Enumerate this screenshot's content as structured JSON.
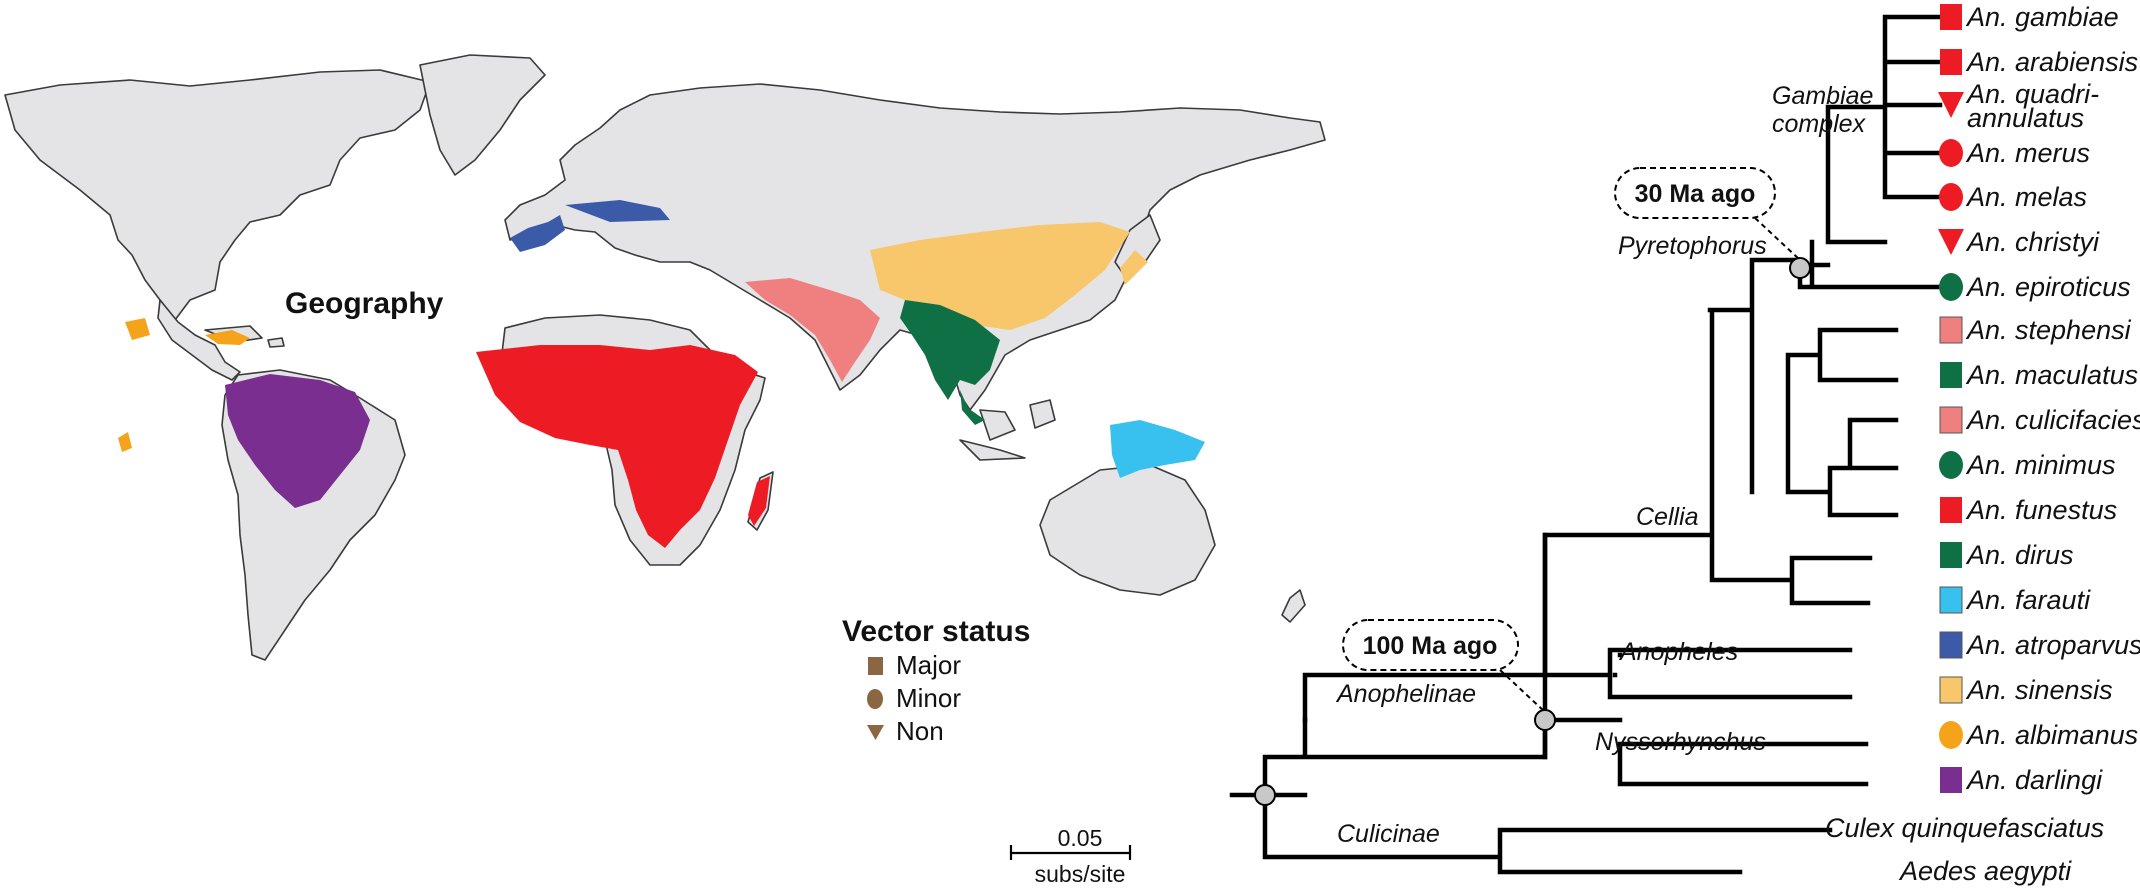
{
  "map": {
    "title": "Geography",
    "colors": {
      "red": "#ed1c24",
      "blue": "#3b5ba9",
      "pink": "#f08080",
      "yellow": "#f8c66b",
      "green": "#0f7045",
      "cyan": "#38c0ee",
      "orange": "#f5a31a",
      "purple": "#7a2e8f",
      "land": "#e4e4e6"
    }
  },
  "legend": {
    "title": "Vector status",
    "items": [
      {
        "label": "Major",
        "shape": "square"
      },
      {
        "label": "Minor",
        "shape": "circle"
      },
      {
        "label": "Non",
        "shape": "triangle"
      }
    ],
    "color": "#8a6642"
  },
  "scale_bar": {
    "value": "0.05",
    "unit": "subs/site"
  },
  "tree": {
    "ages": [
      "30 Ma ago",
      "100 Ma ago"
    ],
    "clades": {
      "gambiae_line1": "Gambiae",
      "gambiae_line2": "complex",
      "pyretophorus": "Pyretophorus",
      "cellia": "Cellia",
      "anopheles": "Anopheles",
      "anophelinae": "Anophelinae",
      "nyssorhynchus": "Nyssorhynchus",
      "culicinae": "Culicinae"
    },
    "species": [
      {
        "name": "An. gambiae",
        "shape": "square",
        "color": "#ed1c24"
      },
      {
        "name": "An. arabiensis",
        "shape": "square",
        "color": "#ed1c24"
      },
      {
        "name": "An. quadri-",
        "name2": "annulatus",
        "shape": "triangle",
        "color": "#ed1c24"
      },
      {
        "name": "An. merus",
        "shape": "circle",
        "color": "#ed1c24"
      },
      {
        "name": "An. melas",
        "shape": "circle",
        "color": "#ed1c24"
      },
      {
        "name": "An. christyi",
        "shape": "triangle",
        "color": "#ed1c24"
      },
      {
        "name": "An. epiroticus",
        "shape": "circle",
        "color": "#0f7045"
      },
      {
        "name": "An. stephensi",
        "shape": "square",
        "color": "#f08080"
      },
      {
        "name": "An. maculatus",
        "shape": "square",
        "color": "#0f7045"
      },
      {
        "name": "An. culicifacies",
        "shape": "square",
        "color": "#f08080"
      },
      {
        "name": "An. minimus",
        "shape": "circle",
        "color": "#0f7045"
      },
      {
        "name": "An. funestus",
        "shape": "square",
        "color": "#ed1c24"
      },
      {
        "name": "An. dirus",
        "shape": "square",
        "color": "#0f7045"
      },
      {
        "name": "An. farauti",
        "shape": "square",
        "color": "#38c0ee"
      },
      {
        "name": "An. atroparvus",
        "shape": "square",
        "color": "#3b5ba9"
      },
      {
        "name": "An. sinensis",
        "shape": "square",
        "color": "#f8c66b"
      },
      {
        "name": "An. albimanus",
        "shape": "circle",
        "color": "#f5a31a"
      },
      {
        "name": "An. darlingi",
        "shape": "square",
        "color": "#7a2e8f"
      }
    ],
    "outgroups": [
      "Culex quinquefasciatus",
      "Aedes aegypti"
    ]
  }
}
